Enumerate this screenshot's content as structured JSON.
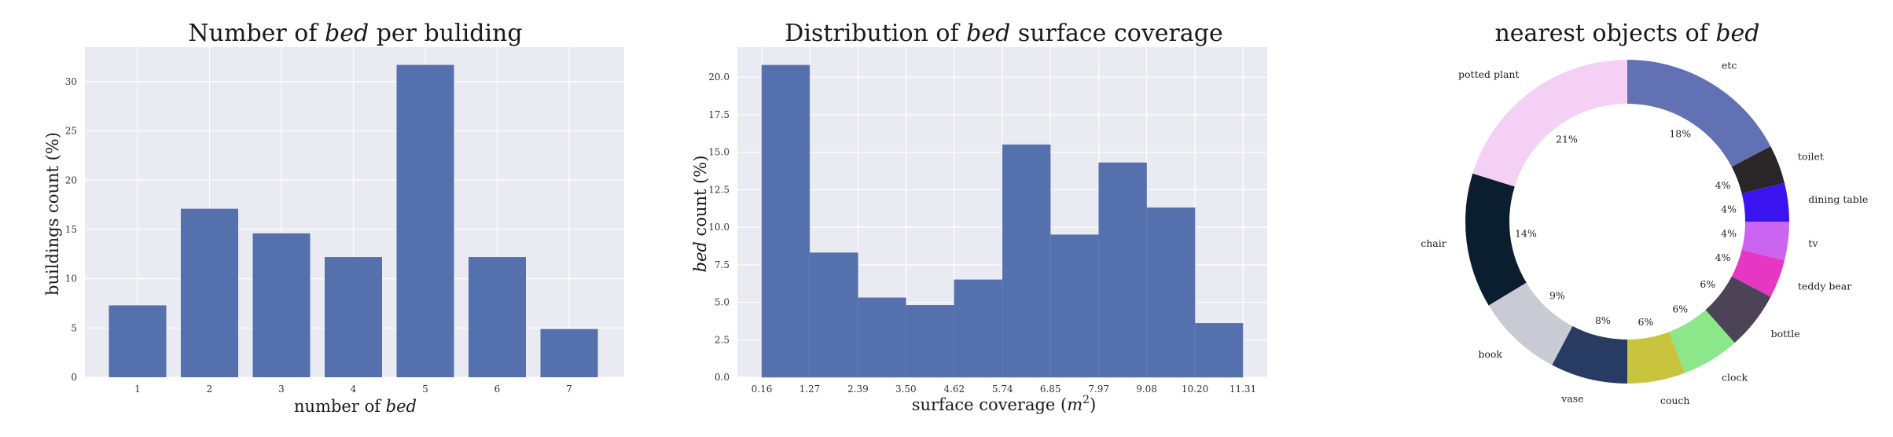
{
  "chart_data": [
    {
      "type": "bar",
      "title_parts": [
        "Number of ",
        "bed",
        " per buliding"
      ],
      "xlabel_parts": [
        "number of ",
        "bed"
      ],
      "ylabel": "buildings count (%)",
      "categories": [
        "1",
        "2",
        "3",
        "4",
        "5",
        "6",
        "7"
      ],
      "values": [
        7.3,
        17.1,
        14.6,
        12.2,
        31.7,
        12.2,
        4.9
      ],
      "ylim": [
        0,
        33.5
      ],
      "yticks": [
        "0",
        "5",
        "10",
        "15",
        "20",
        "25",
        "30"
      ],
      "grid": true,
      "bar_color": "#5470ad",
      "background": "#eaeaf2"
    },
    {
      "type": "bar",
      "title_parts": [
        "Distribution of ",
        "bed",
        " surface coverage"
      ],
      "xlabel_parts": [
        "surface coverage (",
        "m",
        "2",
        ")"
      ],
      "ylabel_parts": [
        "bed",
        " count (%)"
      ],
      "bin_edges": [
        "0.16",
        "1.27",
        "2.39",
        "3.50",
        "4.62",
        "5.74",
        "6.85",
        "7.97",
        "9.08",
        "10.20",
        "11.31"
      ],
      "values": [
        20.8,
        8.3,
        5.3,
        4.8,
        6.5,
        15.5,
        9.5,
        14.3,
        11.3,
        3.6
      ],
      "ylim": [
        0,
        22
      ],
      "yticks": [
        "0.0",
        "2.5",
        "5.0",
        "7.5",
        "10.0",
        "12.5",
        "15.0",
        "17.5",
        "20.0"
      ],
      "grid": true,
      "bar_color": "#5470ad",
      "background": "#eaeaf2"
    },
    {
      "type": "pie",
      "title_parts": [
        "nearest objects of ",
        "bed"
      ],
      "slices": [
        {
          "label": "etc",
          "pct": 18,
          "pct_label": "18%",
          "color": "#6270b4"
        },
        {
          "label": "toilet",
          "pct": 4,
          "pct_label": "4%",
          "color": "#2a2527"
        },
        {
          "label": "dining table",
          "pct": 4,
          "pct_label": "4%",
          "color": "#3a14f0"
        },
        {
          "label": "tv",
          "pct": 4,
          "pct_label": "4%",
          "color": "#cb64f0"
        },
        {
          "label": "teddy bear",
          "pct": 4,
          "pct_label": "4%",
          "color": "#e536c4"
        },
        {
          "label": "bottle",
          "pct": 6,
          "pct_label": "6%",
          "color": "#4c4456"
        },
        {
          "label": "clock",
          "pct": 6,
          "pct_label": "6%",
          "color": "#8ce68a"
        },
        {
          "label": "couch",
          "pct": 6,
          "pct_label": "6%",
          "color": "#c9c43e"
        },
        {
          "label": "vase",
          "pct": 8,
          "pct_label": "8%",
          "color": "#283b62"
        },
        {
          "label": "book",
          "pct": 9,
          "pct_label": "9%",
          "color": "#cacad4"
        },
        {
          "label": "chair",
          "pct": 14,
          "pct_label": "14%",
          "color": "#0b1e30"
        },
        {
          "label": "potted plant",
          "pct": 21,
          "pct_label": "21%",
          "color": "#f5d0f5"
        }
      ],
      "donut": true
    }
  ]
}
